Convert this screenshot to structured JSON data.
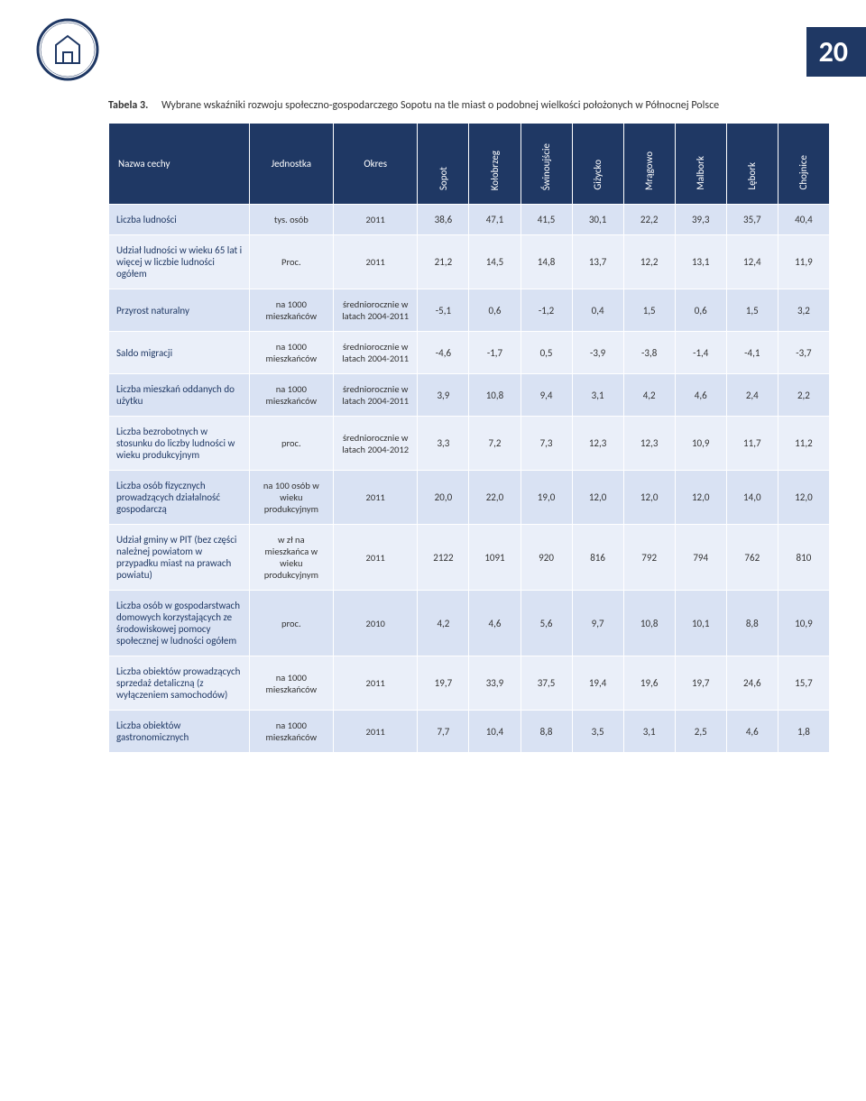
{
  "page_number": "20",
  "caption_label": "Tabela 3.",
  "caption_text": "Wybrane wskaźniki rozwoju społeczno-gospodarczego Sopotu na tle miast o podobnej wielkości położonych w Północnej Polsce",
  "header": {
    "name": "Nazwa cechy",
    "unit": "Jednostka",
    "period": "Okres",
    "cities": [
      "Sopot",
      "Kołobrzeg",
      "Świnoujście",
      "Giżycko",
      "Mrągowo",
      "Malbork",
      "Lębork",
      "Chojnice"
    ]
  },
  "rows": [
    {
      "label": "Liczba ludności",
      "unit": "tys. osób",
      "period": "2011",
      "vals": [
        "38,6",
        "47,1",
        "41,5",
        "30,1",
        "22,2",
        "39,3",
        "35,7",
        "40,4"
      ]
    },
    {
      "label": "Udział ludności w wieku 65 lat i więcej w liczbie ludności ogółem",
      "unit": "Proc.",
      "period": "2011",
      "vals": [
        "21,2",
        "14,5",
        "14,8",
        "13,7",
        "12,2",
        "13,1",
        "12,4",
        "11,9"
      ]
    },
    {
      "label": "Przyrost naturalny",
      "unit": "na 1000 mieszkańców",
      "period": "średniorocznie w latach 2004-2011",
      "vals": [
        "-5,1",
        "0,6",
        "-1,2",
        "0,4",
        "1,5",
        "0,6",
        "1,5",
        "3,2"
      ]
    },
    {
      "label": "Saldo migracji",
      "unit": "na 1000 mieszkańców",
      "period": "średniorocznie w latach 2004-2011",
      "vals": [
        "-4,6",
        "-1,7",
        "0,5",
        "-3,9",
        "-3,8",
        "-1,4",
        "-4,1",
        "-3,7"
      ]
    },
    {
      "label": "Liczba mieszkań oddanych do użytku",
      "unit": "na 1000 mieszkańców",
      "period": "średniorocznie w latach 2004-2011",
      "vals": [
        "3,9",
        "10,8",
        "9,4",
        "3,1",
        "4,2",
        "4,6",
        "2,4",
        "2,2"
      ]
    },
    {
      "label": "Liczba bezrobotnych w stosunku do liczby ludności w wieku produkcyjnym",
      "unit": "proc.",
      "period": "średniorocznie w latach 2004-2012",
      "vals": [
        "3,3",
        "7,2",
        "7,3",
        "12,3",
        "12,3",
        "10,9",
        "11,7",
        "11,2"
      ]
    },
    {
      "label": "Liczba osób fizycznych prowadzących działalność gospodarczą",
      "unit": "na 100 osób w wieku produkcyjnym",
      "period": "2011",
      "vals": [
        "20,0",
        "22,0",
        "19,0",
        "12,0",
        "12,0",
        "12,0",
        "14,0",
        "12,0"
      ]
    },
    {
      "label": "Udział gminy w PIT (bez części należnej powiatom w przypadku miast na prawach powiatu)",
      "unit": "w zł na mieszkańca w wieku produkcyjnym",
      "period": "2011",
      "vals": [
        "2122",
        "1091",
        "920",
        "816",
        "792",
        "794",
        "762",
        "810"
      ]
    },
    {
      "label": "Liczba osób w gospodarstwach domowych korzystających ze środowiskowej pomocy społecznej w ludności ogółem",
      "unit": "proc.",
      "period": "2010",
      "vals": [
        "4,2",
        "4,6",
        "5,6",
        "9,7",
        "10,8",
        "10,1",
        "8,8",
        "10,9"
      ]
    },
    {
      "label": "Liczba obiektów prowadzących sprzedaż detaliczną (z wyłączeniem samochodów)",
      "unit": "na 1000 mieszkańców",
      "period": "2011",
      "vals": [
        "19,7",
        "33,9",
        "37,5",
        "19,4",
        "19,6",
        "19,7",
        "24,6",
        "15,7"
      ]
    },
    {
      "label": "Liczba obiektów gastronomicznych",
      "unit": "na 1000 mieszkańców",
      "period": "2011",
      "vals": [
        "7,7",
        "10,4",
        "8,8",
        "3,5",
        "3,1",
        "2,5",
        "4,6",
        "1,8"
      ]
    }
  ],
  "colors": {
    "header_bg": "#1f3864",
    "even_bg": "#d9e2f3",
    "odd_bg": "#eaeff9",
    "label_text": "#1f3864"
  }
}
